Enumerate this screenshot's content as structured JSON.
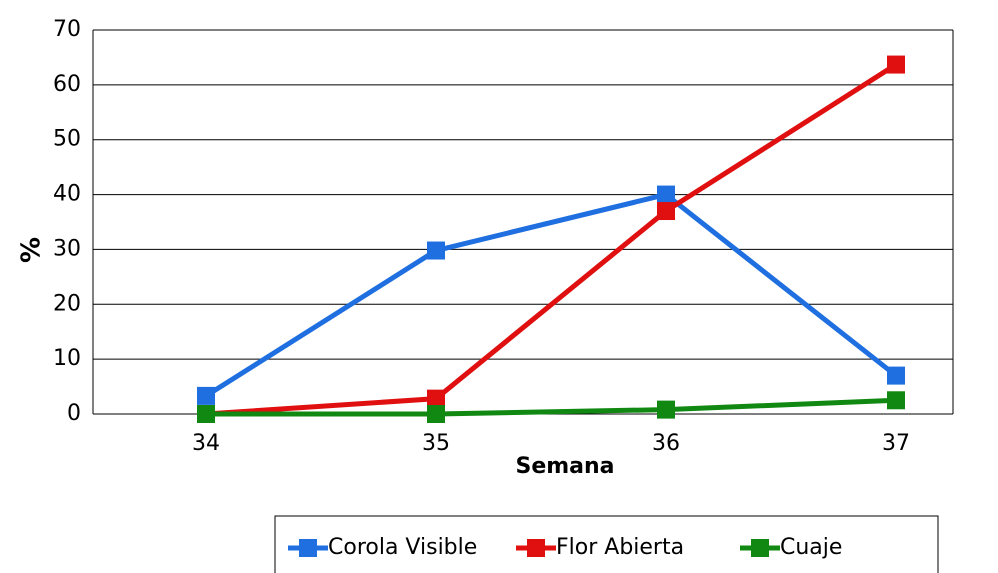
{
  "chart_data": {
    "type": "line",
    "x_label": "Semana",
    "y_label": "%",
    "categories": [
      "34",
      "35",
      "36",
      "37"
    ],
    "series": [
      {
        "name": "Corola Visible",
        "color": "#1f6fe0",
        "values": [
          3.3,
          29.8,
          40,
          7
        ]
      },
      {
        "name": "Flor Abierta",
        "color": "#e01010",
        "values": [
          0,
          2.8,
          37,
          63.7
        ]
      },
      {
        "name": "Cuaje",
        "color": "#118811",
        "values": [
          0,
          0,
          0.8,
          2.5
        ]
      }
    ],
    "ylim": [
      0,
      70
    ],
    "yticks": [
      0,
      10,
      20,
      30,
      40,
      50,
      60,
      70
    ],
    "grid": true
  }
}
